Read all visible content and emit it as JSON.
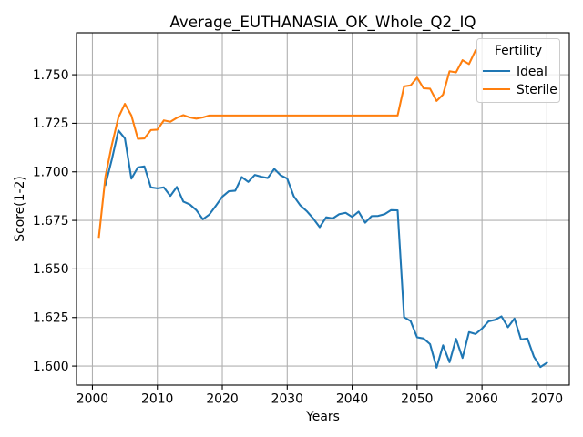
{
  "chart_data": {
    "type": "line",
    "title": "Average_EUTHANASIA_OK_Whole_Q2_IQ",
    "xlabel": "Years",
    "ylabel": "Score(1-2)",
    "xlim": [
      1997.55,
      2073.45
    ],
    "ylim": [
      1.5902,
      1.7716
    ],
    "xticks": [
      2000,
      2010,
      2020,
      2030,
      2040,
      2050,
      2060,
      2070
    ],
    "xtick_labels": [
      "2000",
      "2010",
      "2020",
      "2030",
      "2040",
      "2050",
      "2060",
      "2070"
    ],
    "yticks": [
      1.6,
      1.625,
      1.65,
      1.675,
      1.7,
      1.725,
      1.75
    ],
    "ytick_labels": [
      "1.600",
      "1.625",
      "1.650",
      "1.675",
      "1.700",
      "1.725",
      "1.750"
    ],
    "grid": true,
    "legend": {
      "title": "Fertility",
      "placement": "upper right"
    },
    "series": [
      {
        "name": "Ideal",
        "color": "#1f77b4",
        "x": [
          2002,
          2003,
          2004,
          2005,
          2006,
          2007,
          2008,
          2009,
          2010,
          2011,
          2012,
          2013,
          2014,
          2015,
          2016,
          2017,
          2018,
          2019,
          2020,
          2021,
          2022,
          2023,
          2024,
          2025,
          2026,
          2027,
          2028,
          2029,
          2030,
          2031,
          2032,
          2033,
          2034,
          2035,
          2036,
          2037,
          2038,
          2039,
          2040,
          2041,
          2042,
          2043,
          2044,
          2045,
          2046,
          2047,
          2048,
          2049,
          2050,
          2051,
          2052,
          2053,
          2054,
          2055,
          2056,
          2057,
          2058,
          2059,
          2060,
          2061,
          2062,
          2063,
          2064,
          2065,
          2066,
          2067,
          2068,
          2069,
          2070
        ],
        "y": [
          1.6933,
          1.7065,
          1.7213,
          1.7172,
          1.6965,
          1.7023,
          1.7028,
          1.692,
          1.6915,
          1.692,
          1.6876,
          1.6922,
          1.6847,
          1.6832,
          1.6803,
          1.6756,
          1.678,
          1.6825,
          1.6872,
          1.69,
          1.6903,
          1.6973,
          1.6948,
          1.6984,
          1.6975,
          1.6968,
          1.7015,
          1.6982,
          1.6965,
          1.6875,
          1.6828,
          1.6798,
          1.676,
          1.6715,
          1.6766,
          1.676,
          1.6782,
          1.6789,
          1.6768,
          1.6795,
          1.6738,
          1.6772,
          1.6773,
          1.6782,
          1.6803,
          1.6802,
          1.6252,
          1.6232,
          1.6148,
          1.6142,
          1.6113,
          1.5992,
          1.6107,
          1.602,
          1.614,
          1.6042,
          1.6175,
          1.6165,
          1.6193,
          1.623,
          1.6238,
          1.6256,
          1.62,
          1.6245,
          1.6137,
          1.6142,
          1.6048,
          1.5995,
          1.6017
        ]
      },
      {
        "name": "Sterile",
        "color": "#ff7f0e",
        "x": [
          2001,
          2002,
          2003,
          2004,
          2005,
          2006,
          2007,
          2008,
          2009,
          2010,
          2011,
          2012,
          2013,
          2014,
          2015,
          2016,
          2017,
          2018,
          2019,
          2020,
          2021,
          2022,
          2023,
          2024,
          2025,
          2026,
          2027,
          2028,
          2029,
          2030,
          2031,
          2032,
          2033,
          2034,
          2035,
          2036,
          2037,
          2038,
          2039,
          2040,
          2041,
          2042,
          2043,
          2044,
          2045,
          2046,
          2047,
          2048,
          2049,
          2050,
          2051,
          2052,
          2053,
          2054,
          2055,
          2056,
          2057,
          2058,
          2059
        ],
        "y": [
          1.6665,
          1.6975,
          1.714,
          1.728,
          1.735,
          1.729,
          1.717,
          1.7172,
          1.7215,
          1.7217,
          1.7265,
          1.7258,
          1.7278,
          1.7292,
          1.728,
          1.7274,
          1.728,
          1.729,
          1.729,
          1.729,
          1.729,
          1.729,
          1.729,
          1.729,
          1.729,
          1.729,
          1.729,
          1.729,
          1.729,
          1.729,
          1.729,
          1.729,
          1.729,
          1.729,
          1.729,
          1.729,
          1.729,
          1.729,
          1.729,
          1.729,
          1.729,
          1.729,
          1.729,
          1.729,
          1.729,
          1.729,
          1.729,
          1.744,
          1.7445,
          1.7485,
          1.743,
          1.7428,
          1.7365,
          1.7398,
          1.7518,
          1.7512,
          1.7575,
          1.7555,
          1.7625
        ]
      }
    ]
  }
}
